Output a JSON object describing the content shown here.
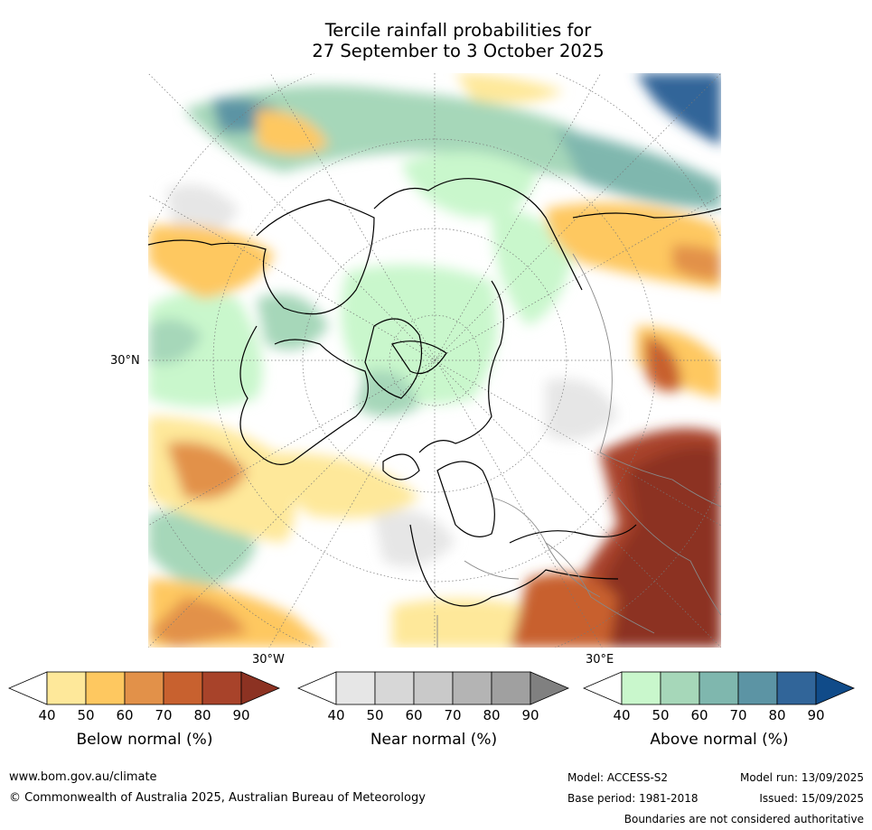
{
  "title": {
    "line1": "Tercile rainfall probabilities for",
    "line2": "27 September to 3 October 2025"
  },
  "map": {
    "lat_label": "30°N",
    "lon_labels": [
      "30°W",
      "30°E"
    ]
  },
  "legend": {
    "below": {
      "label": "Below normal (%)",
      "ticks": [
        "40",
        "50",
        "60",
        "70",
        "80",
        "90"
      ],
      "colors": [
        "#ffffff",
        "#fee89a",
        "#fec860",
        "#e29149",
        "#c8612f",
        "#a8432a",
        "#8c3222"
      ]
    },
    "near": {
      "label": "Near normal (%)",
      "ticks": [
        "40",
        "50",
        "60",
        "70",
        "80",
        "90"
      ],
      "colors": [
        "#ffffff",
        "#e6e6e6",
        "#d7d7d7",
        "#c9c9c9",
        "#b4b4b4",
        "#a0a0a0",
        "#808080"
      ]
    },
    "above": {
      "label": "Above normal (%)",
      "ticks": [
        "40",
        "50",
        "60",
        "70",
        "80",
        "90"
      ],
      "colors": [
        "#ffffff",
        "#c9f7cc",
        "#a6d7b9",
        "#7fb7ae",
        "#5c94a4",
        "#316599",
        "#104b89"
      ]
    }
  },
  "footer": {
    "website": "www.bom.gov.au/climate",
    "copyright": "© Commonwealth of Australia 2025, Australian Bureau of Meteorology",
    "model": "Model: ACCESS-S2",
    "model_run": "Model run: 13/09/2025",
    "base_period": "Base period: 1981-2018",
    "issued": "Issued: 15/09/2025",
    "disclaimer": "Boundaries are not considered authoritative"
  }
}
